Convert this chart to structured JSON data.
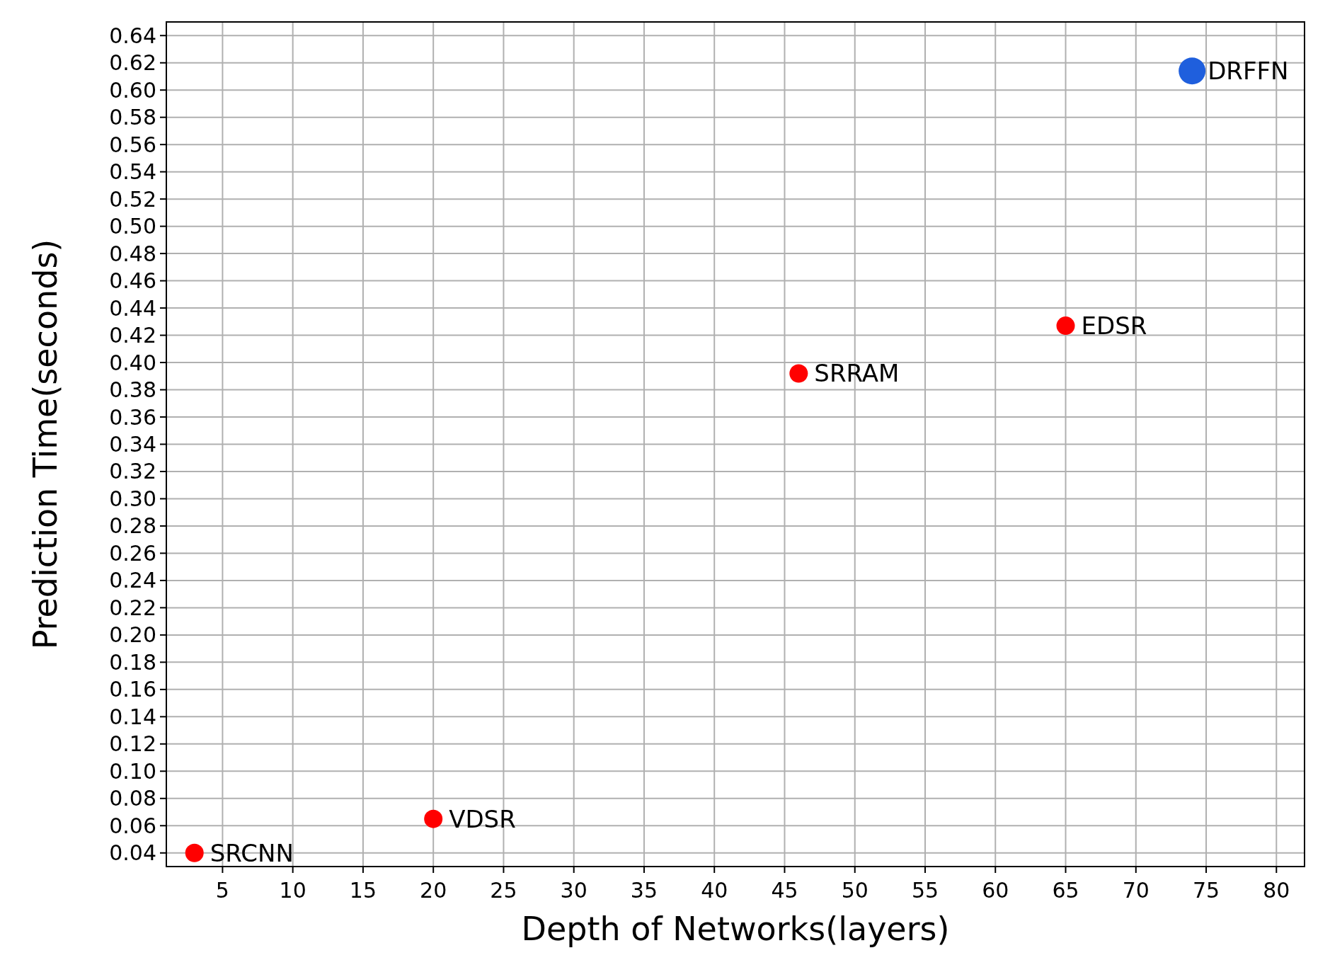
{
  "chart_data": {
    "type": "scatter",
    "xlabel": "Depth of Networks(layers)",
    "ylabel": "Prediction Time(seconds)",
    "series": [
      {
        "color": "#ff0000",
        "x": [
          3,
          20,
          46,
          65
        ],
        "values": [
          0.04,
          0.065,
          0.392,
          0.427
        ]
      },
      {
        "color": "#1f5fdd",
        "x": [
          74
        ],
        "values": [
          0.614
        ]
      }
    ],
    "xlim": [
      1,
      82
    ],
    "xticks": [
      5,
      10,
      15,
      20,
      25,
      30,
      35,
      40,
      45,
      50,
      55,
      60,
      65,
      70,
      75,
      80
    ],
    "ylim": [
      0.03,
      0.65
    ],
    "yticks": [
      {
        "value": 0.04,
        "label": "0.04"
      },
      {
        "value": 0.06,
        "label": "0.06"
      },
      {
        "value": 0.08,
        "label": "0.08"
      },
      {
        "value": 0.1,
        "label": "0.10"
      },
      {
        "value": 0.12,
        "label": "0.12"
      },
      {
        "value": 0.14,
        "label": "0.14"
      },
      {
        "value": 0.16,
        "label": "0.16"
      },
      {
        "value": 0.18,
        "label": "0.18"
      },
      {
        "value": 0.2,
        "label": "0.20"
      },
      {
        "value": 0.22,
        "label": "0.22"
      },
      {
        "value": 0.24,
        "label": "0.24"
      },
      {
        "value": 0.26,
        "label": "0.26"
      },
      {
        "value": 0.28,
        "label": "0.28"
      },
      {
        "value": 0.3,
        "label": "0.30"
      },
      {
        "value": 0.32,
        "label": "0.32"
      },
      {
        "value": 0.34,
        "label": "0.34"
      },
      {
        "value": 0.36,
        "label": "0.36"
      },
      {
        "value": 0.38,
        "label": "0.38"
      },
      {
        "value": 0.4,
        "label": "0.40"
      },
      {
        "value": 0.42,
        "label": "0.42"
      },
      {
        "value": 0.44,
        "label": "0.44"
      },
      {
        "value": 0.46,
        "label": "0.46"
      },
      {
        "value": 0.48,
        "label": "0.48"
      },
      {
        "value": 0.5,
        "label": "0.50"
      },
      {
        "value": 0.52,
        "label": "0.52"
      },
      {
        "value": 0.54,
        "label": "0.54"
      },
      {
        "value": 0.56,
        "label": "0.56"
      },
      {
        "value": 0.58,
        "label": "0.58"
      },
      {
        "value": 0.6,
        "label": "0.60"
      },
      {
        "value": 0.62,
        "label": "0.62"
      },
      {
        "value": 0.64,
        "label": "0.64"
      }
    ],
    "grid": true,
    "marker": "circle",
    "annotations": [
      {
        "text": "SRCNN",
        "x": 3,
        "y": 0.04
      },
      {
        "text": "VDSR",
        "x": 20,
        "y": 0.065
      },
      {
        "text": "SRRAM",
        "x": 46,
        "y": 0.392
      },
      {
        "text": "EDSR",
        "x": 65,
        "y": 0.427
      },
      {
        "text": "DRFFN",
        "x": 74,
        "y": 0.614
      }
    ]
  }
}
